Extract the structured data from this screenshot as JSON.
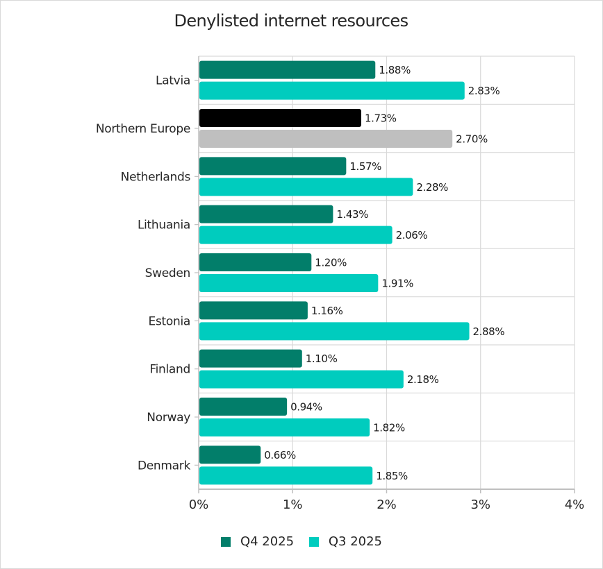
{
  "chart_data": {
    "type": "bar",
    "orientation": "horizontal",
    "title": "Denylisted internet resources",
    "xlabel": "",
    "ylabel": "",
    "xlim": [
      0,
      4
    ],
    "x_ticks": [
      0,
      1,
      2,
      3,
      4
    ],
    "x_tick_labels": [
      "0%",
      "1%",
      "2%",
      "3%",
      "4%"
    ],
    "grid": true,
    "legend_position": "bottom",
    "categories": [
      "Latvia",
      "Northern Europe",
      "Netherlands",
      "Lithuania",
      "Sweden",
      "Estonia",
      "Finland",
      "Norway",
      "Denmark"
    ],
    "highlight_category": "Northern Europe",
    "series": [
      {
        "name": "Q4 2025",
        "color": "#027E6A",
        "highlight_color": "#000000",
        "values": [
          1.88,
          1.73,
          1.57,
          1.43,
          1.2,
          1.16,
          1.1,
          0.94,
          0.66
        ],
        "labels": [
          "1.88%",
          "1.73%",
          "1.57%",
          "1.43%",
          "1.20%",
          "1.16%",
          "1.10%",
          "0.94%",
          "0.66%"
        ]
      },
      {
        "name": "Q3 2025",
        "color": "#00CCBE",
        "highlight_color": "#BFBFBF",
        "values": [
          2.83,
          2.7,
          2.28,
          2.06,
          1.91,
          2.88,
          2.18,
          1.82,
          1.85
        ],
        "labels": [
          "2.83%",
          "2.70%",
          "2.28%",
          "2.06%",
          "1.91%",
          "2.88%",
          "2.18%",
          "1.82%",
          "1.85%"
        ]
      }
    ]
  },
  "colors": {
    "grid": "#D9D9D9",
    "axis": "#BFBFBF",
    "text": "#262626"
  }
}
